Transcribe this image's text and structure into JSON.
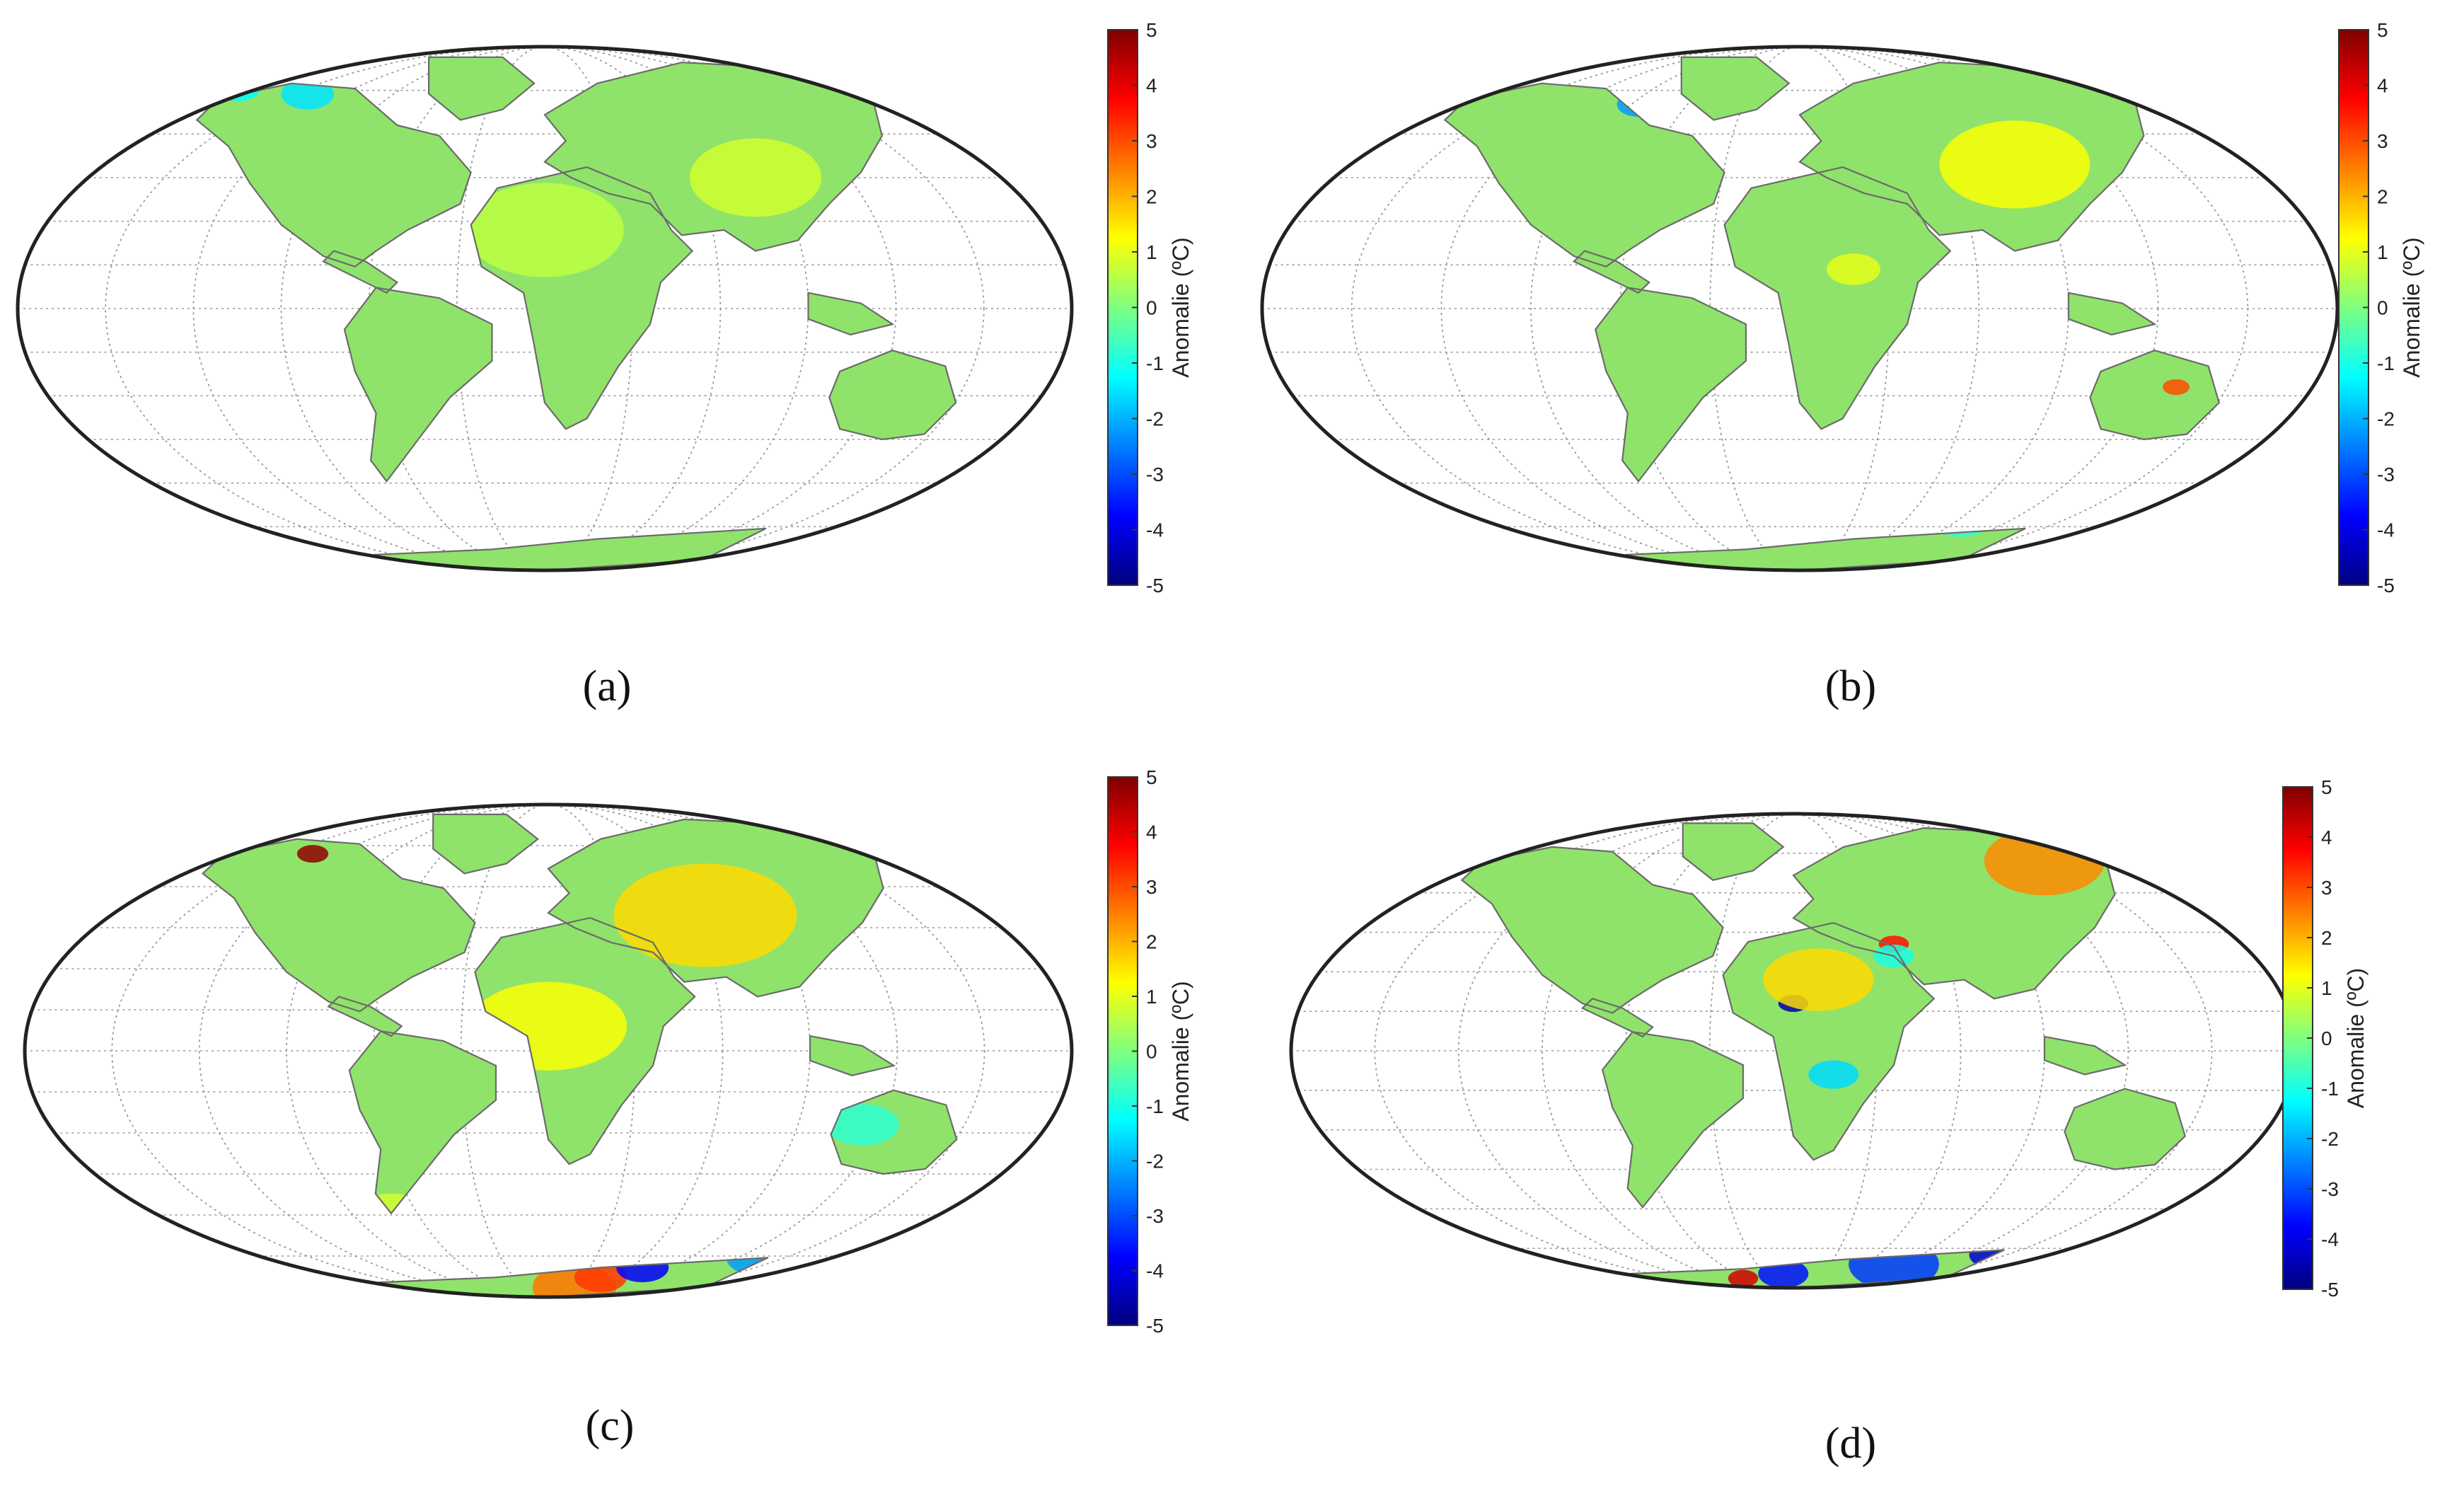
{
  "figure": {
    "colorbar": {
      "label": "Anomalie (ºC)",
      "ticks": [
        "5",
        "4",
        "3",
        "2",
        "1",
        "0",
        "-1",
        "-2",
        "-3",
        "-4",
        "-5"
      ],
      "range": [
        -5,
        5
      ],
      "colormap": "jet",
      "colors": [
        "#00007f",
        "#0000ff",
        "#007fff",
        "#00ffff",
        "#7fff7f",
        "#ffff00",
        "#ff7f00",
        "#ff0000",
        "#7f0000"
      ]
    },
    "land_color": "#8fe36a",
    "panels": [
      {
        "label": "(a)"
      },
      {
        "label": "(b)"
      },
      {
        "label": "(c)"
      },
      {
        "label": "(d)"
      }
    ]
  }
}
